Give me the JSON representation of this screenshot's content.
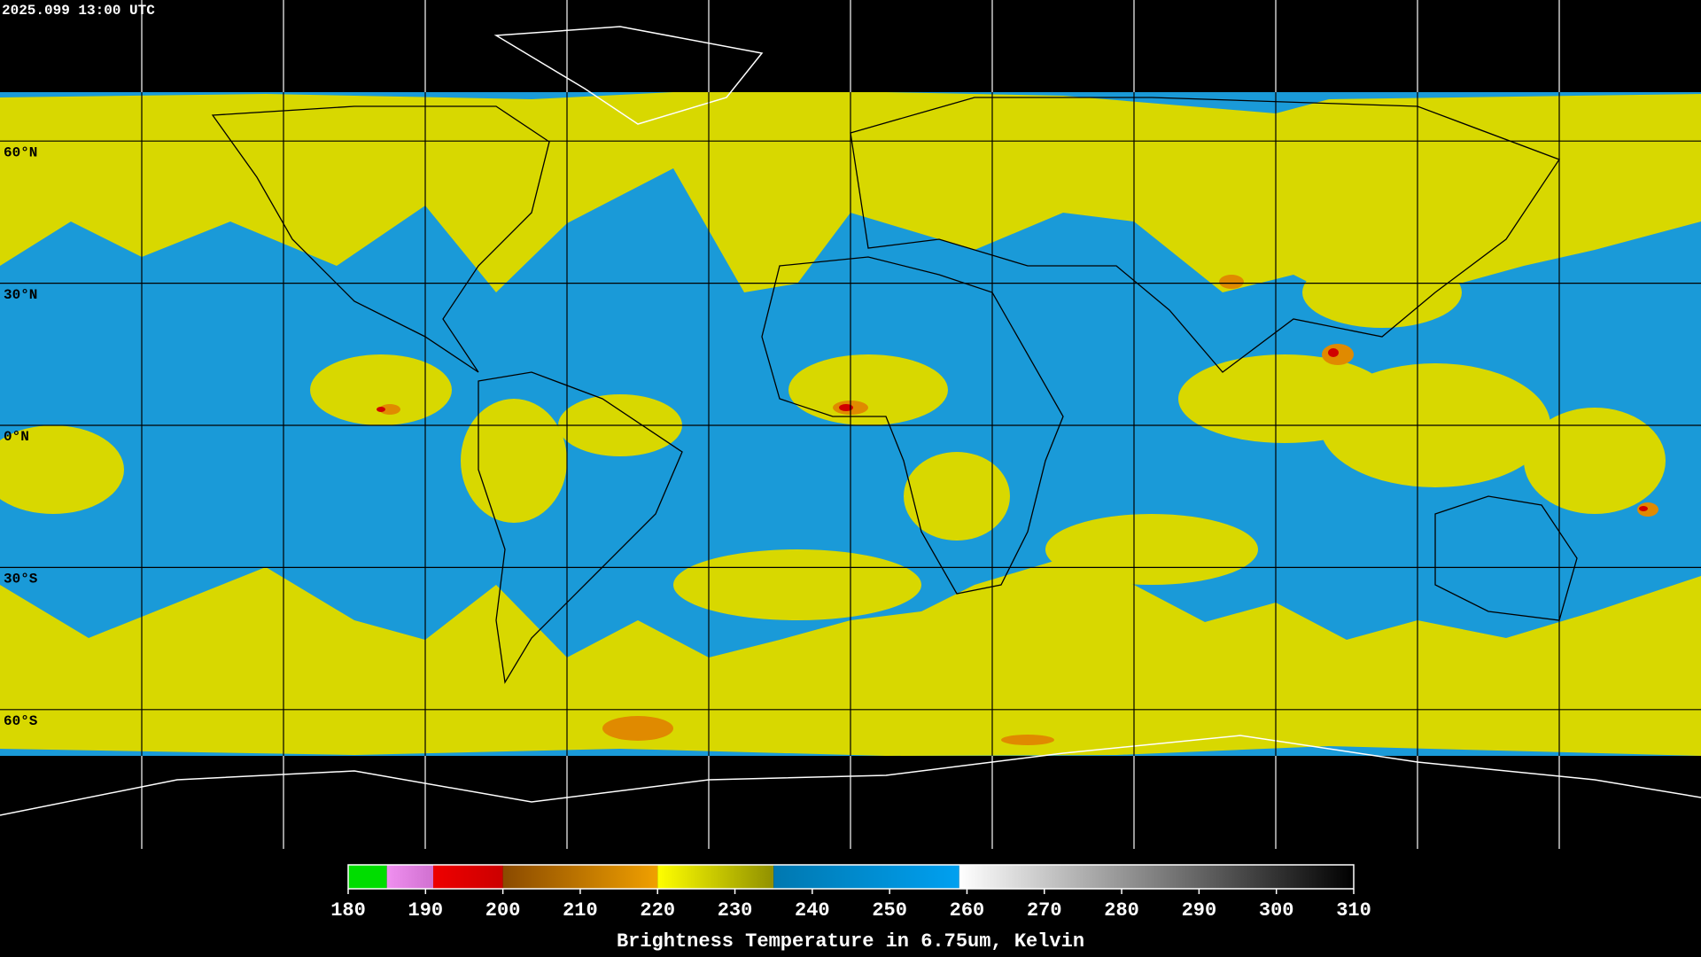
{
  "header": {
    "timestamp": "2025.099 13:00 UTC"
  },
  "map": {
    "lat_ticks": [
      {
        "value": 60,
        "label": "60°N"
      },
      {
        "value": 30,
        "label": "30°N"
      },
      {
        "value": 0,
        "label": "0°N"
      },
      {
        "value": -30,
        "label": "30°S"
      },
      {
        "value": -60,
        "label": "60°S"
      }
    ]
  },
  "colorbar": {
    "title": "Brightness Temperature in 6.75um, Kelvin",
    "range": [
      180,
      310
    ],
    "ticks": [
      180,
      190,
      200,
      210,
      220,
      230,
      240,
      250,
      260,
      270,
      280,
      290,
      300,
      310
    ],
    "segments": [
      {
        "from": 180,
        "to": 185,
        "colors": [
          "#00dd00",
          "#00dd00"
        ]
      },
      {
        "from": 185,
        "to": 191,
        "colors": [
          "#f090f0",
          "#d070d0"
        ]
      },
      {
        "from": 191,
        "to": 200,
        "colors": [
          "#ee0000",
          "#cc0000"
        ]
      },
      {
        "from": 200,
        "to": 220,
        "colors": [
          "#8a4a00",
          "#f0a000"
        ]
      },
      {
        "from": 220,
        "to": 235,
        "colors": [
          "#ffff00",
          "#909000"
        ]
      },
      {
        "from": 235,
        "to": 259,
        "colors": [
          "#0078b0",
          "#00a0f0"
        ]
      },
      {
        "from": 259,
        "to": 310,
        "colors": [
          "#ffffff",
          "#000000"
        ]
      }
    ]
  }
}
